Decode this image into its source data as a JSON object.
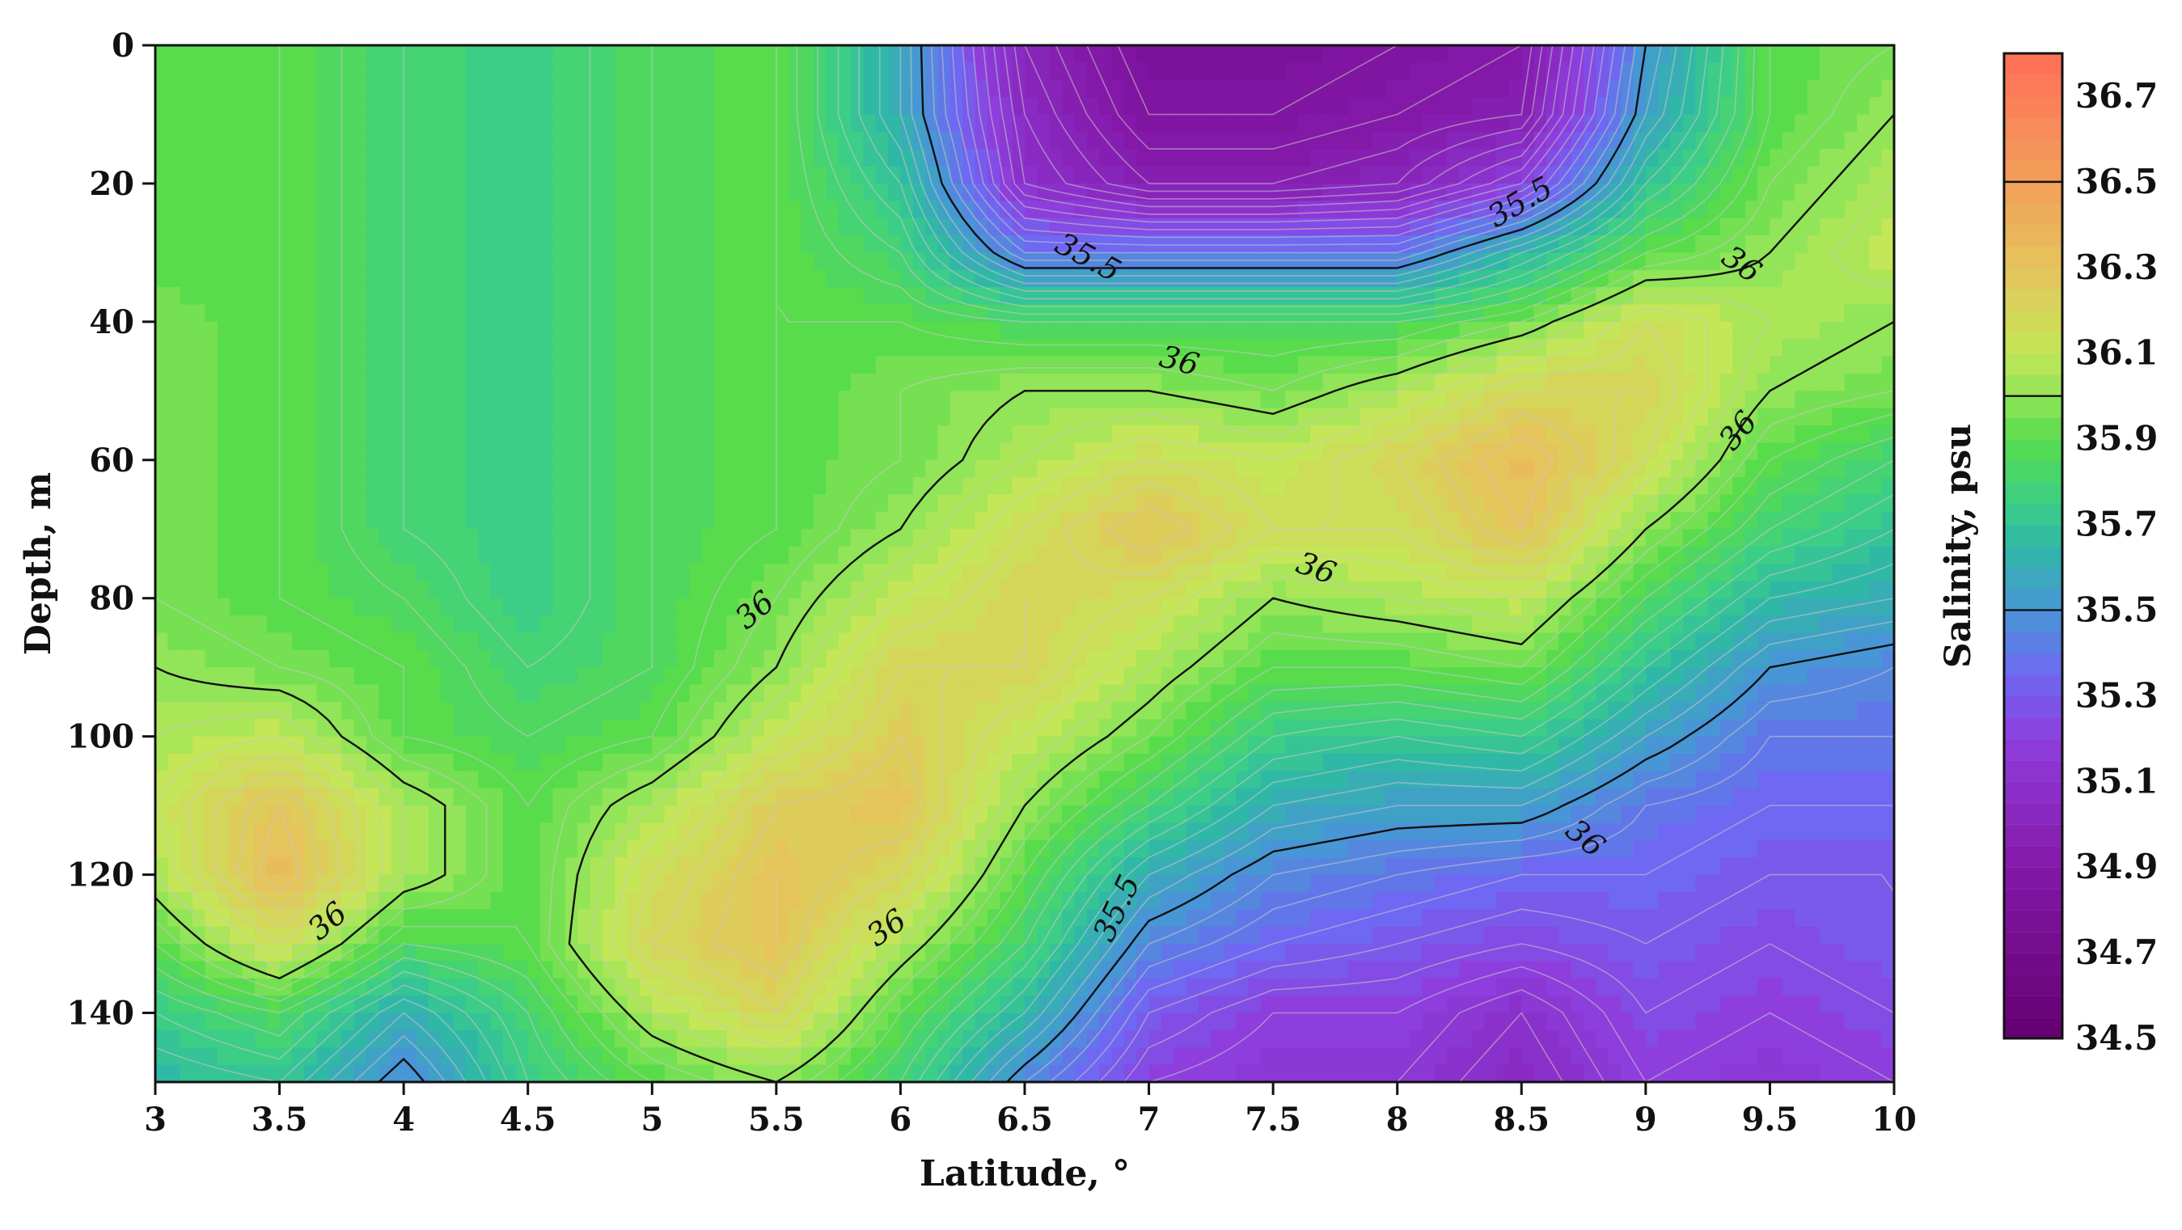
{
  "chart_data": {
    "type": "heatmap",
    "subtype": "filled-contour",
    "xlabel": "Latitude, °",
    "ylabel": "Depth, m",
    "xlim": [
      3,
      10
    ],
    "ylim": [
      150,
      0
    ],
    "x_ticks": [
      3,
      3.5,
      4,
      4.5,
      5,
      5.5,
      6,
      6.5,
      7,
      7.5,
      8,
      8.5,
      9,
      9.5,
      10
    ],
    "x_tick_labels": [
      "3",
      "3.5",
      "4",
      "4.5",
      "5",
      "5.5",
      "6",
      "6.5",
      "7",
      "7.5",
      "8",
      "8.5",
      "9",
      "9.5",
      "10"
    ],
    "y_ticks": [
      0,
      20,
      40,
      60,
      80,
      100,
      120,
      140
    ],
    "y_tick_labels": [
      "0",
      "20",
      "40",
      "60",
      "80",
      "100",
      "120",
      "140"
    ],
    "colorbar": {
      "label": "Salinity, psu",
      "range": [
        34.5,
        36.8
      ],
      "tick_values": [
        36.7,
        36.5,
        36.3,
        36.1,
        35.9,
        35.7,
        35.5,
        35.3,
        35.1,
        34.9,
        34.7,
        34.5
      ],
      "tick_labels": [
        "36.7",
        "36.5",
        "36.3",
        "36.1",
        "35.9",
        "35.7",
        "35.5",
        "35.3",
        "35.1",
        "34.9",
        "34.7",
        "34.5"
      ],
      "marked_levels": [
        36.5,
        36.0,
        35.5
      ]
    },
    "contour_levels_labeled": [
      35.5,
      36
    ],
    "contour_labels": [
      {
        "text": "35.5",
        "x": 6.75,
        "y": 31,
        "rot": 28
      },
      {
        "text": "35.5",
        "x": 8.5,
        "y": 23,
        "rot": -30
      },
      {
        "text": "36",
        "x": 9.38,
        "y": 32,
        "rot": 35
      },
      {
        "text": "36",
        "x": 7.12,
        "y": 46,
        "rot": 15
      },
      {
        "text": "36",
        "x": 9.38,
        "y": 56,
        "rot": -50
      },
      {
        "text": "36",
        "x": 7.67,
        "y": 76,
        "rot": 20
      },
      {
        "text": "36",
        "x": 5.42,
        "y": 82,
        "rot": -40
      },
      {
        "text": "36",
        "x": 8.75,
        "y": 115,
        "rot": 40
      },
      {
        "text": "36",
        "x": 3.7,
        "y": 127,
        "rot": -40
      },
      {
        "text": "36",
        "x": 5.95,
        "y": 128,
        "rot": -35
      },
      {
        "text": "35.5",
        "x": 6.88,
        "y": 125,
        "rot": -65
      }
    ],
    "grid": {
      "x": [
        3,
        3.5,
        4,
        4.5,
        5,
        5.5,
        6,
        6.5,
        7,
        7.5,
        8,
        8.5,
        9,
        9.5,
        10
      ],
      "y": [
        0,
        10,
        20,
        30,
        40,
        50,
        60,
        70,
        80,
        90,
        100,
        110,
        120,
        130,
        140,
        150
      ],
      "values": [
        [
          35.9,
          35.9,
          35.8,
          35.75,
          35.85,
          35.9,
          35.6,
          35.0,
          34.8,
          34.8,
          34.85,
          34.9,
          35.5,
          35.9,
          35.95
        ],
        [
          35.9,
          35.9,
          35.8,
          35.75,
          35.85,
          35.9,
          35.6,
          35.05,
          34.85,
          34.85,
          34.9,
          34.95,
          35.55,
          35.9,
          36.0
        ],
        [
          35.9,
          35.9,
          35.8,
          35.75,
          35.85,
          35.9,
          35.7,
          35.1,
          34.95,
          34.95,
          35.0,
          35.2,
          35.7,
          35.95,
          36.05
        ],
        [
          35.9,
          35.9,
          35.8,
          35.75,
          35.85,
          35.9,
          35.8,
          35.4,
          35.4,
          35.4,
          35.4,
          35.65,
          35.9,
          36.0,
          36.1
        ],
        [
          35.95,
          35.9,
          35.8,
          35.75,
          35.85,
          35.9,
          35.9,
          35.85,
          35.85,
          35.85,
          35.85,
          35.95,
          36.15,
          36.05,
          36.0
        ],
        [
          35.95,
          35.9,
          35.8,
          35.75,
          35.85,
          35.9,
          35.95,
          36.0,
          36.0,
          35.95,
          36.05,
          36.2,
          36.2,
          36.0,
          35.95
        ],
        [
          35.95,
          35.9,
          35.8,
          35.75,
          35.85,
          35.9,
          35.95,
          36.05,
          36.15,
          36.1,
          36.2,
          36.35,
          36.15,
          35.9,
          35.8
        ],
        [
          35.95,
          35.9,
          35.8,
          35.75,
          35.85,
          35.9,
          36.0,
          36.15,
          36.3,
          36.15,
          36.15,
          36.3,
          36.0,
          35.8,
          35.7
        ],
        [
          35.95,
          35.9,
          35.85,
          35.75,
          35.85,
          35.95,
          36.1,
          36.2,
          36.15,
          36.0,
          36.05,
          36.1,
          35.85,
          35.65,
          35.6
        ],
        [
          36.0,
          35.95,
          35.9,
          35.8,
          35.85,
          36.0,
          36.2,
          36.2,
          36.05,
          35.9,
          35.9,
          35.95,
          35.7,
          35.5,
          35.45
        ],
        [
          36.05,
          36.1,
          35.9,
          35.85,
          35.9,
          36.1,
          36.25,
          36.1,
          35.95,
          35.75,
          35.7,
          35.75,
          35.55,
          35.4,
          35.4
        ],
        [
          36.1,
          36.3,
          36.05,
          35.9,
          36.05,
          36.25,
          36.3,
          36.0,
          35.8,
          35.6,
          35.55,
          35.55,
          35.4,
          35.35,
          35.35
        ],
        [
          36.05,
          36.35,
          36.05,
          35.9,
          36.15,
          36.3,
          36.2,
          35.9,
          35.6,
          35.45,
          35.4,
          35.35,
          35.35,
          35.3,
          35.3
        ],
        [
          35.9,
          36.15,
          35.85,
          35.9,
          36.2,
          36.3,
          36.05,
          35.8,
          35.45,
          35.35,
          35.3,
          35.25,
          35.3,
          35.25,
          35.3
        ],
        [
          35.75,
          35.85,
          35.6,
          35.8,
          36.05,
          36.2,
          35.9,
          35.65,
          35.3,
          35.2,
          35.2,
          35.1,
          35.25,
          35.2,
          35.25
        ],
        [
          35.65,
          35.7,
          35.45,
          35.75,
          35.9,
          36.0,
          35.8,
          35.45,
          35.2,
          35.15,
          35.15,
          35.05,
          35.2,
          35.15,
          35.2
        ]
      ]
    }
  }
}
